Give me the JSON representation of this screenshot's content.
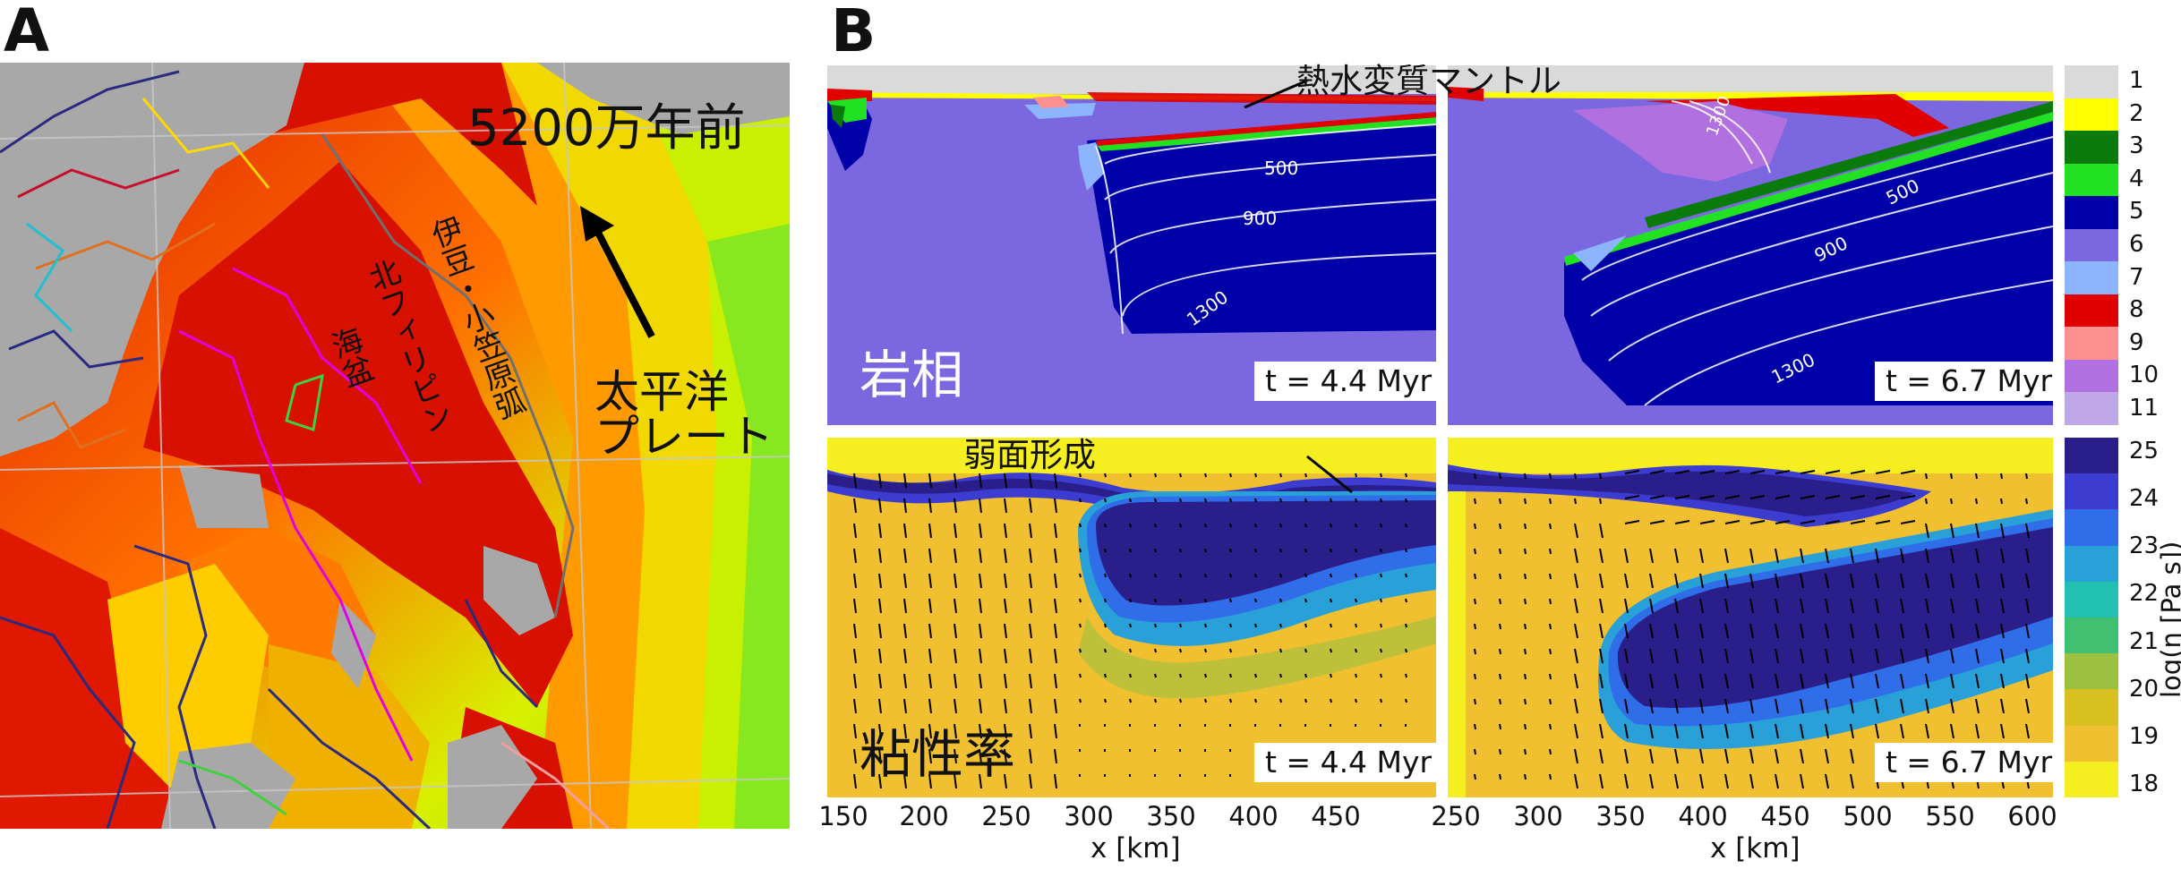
{
  "panel_a": {
    "label": "A",
    "title": "5200万年前",
    "arc_label": "伊豆・小笠原弧",
    "basin_label_1": "北フィリピン",
    "basin_label_2": "海盆",
    "plate_label_1": "太平洋",
    "plate_label_2": "プレート"
  },
  "panel_b": {
    "label": "B",
    "annot_mantle": "熱水変質マントル",
    "annot_weak": "弱面形成",
    "row1_label": "岩相",
    "row2_label": "粘性率",
    "time_left": "t = 4.4 Myr",
    "time_right": "t = 6.7 Myr",
    "contours": [
      "500",
      "900",
      "1300"
    ],
    "xaxis_label": "x [km]",
    "xticks_left": [
      "150",
      "200",
      "250",
      "300",
      "350",
      "400",
      "450"
    ],
    "xticks_right": [
      "250",
      "300",
      "350",
      "400",
      "450",
      "500",
      "550",
      "600"
    ]
  },
  "legend_phase": {
    "labels": [
      "1",
      "2",
      "3",
      "4",
      "5",
      "6",
      "7",
      "8",
      "9",
      "10",
      "11"
    ],
    "colors": [
      "#dadada",
      "#ffff00",
      "#0a7a0a",
      "#22e022",
      "#0000a8",
      "#7b68e0",
      "#8cb4ff",
      "#e00000",
      "#ff9090",
      "#b070e0",
      "#c0a8e8"
    ]
  },
  "legend_visc": {
    "labels": [
      "25",
      "24",
      "23",
      "22",
      "21",
      "20",
      "19",
      "18"
    ],
    "title": "log(η [Pa s])",
    "colors": [
      "#2a1f8a",
      "#3c3cd0",
      "#2f6ee8",
      "#2aa0d8",
      "#22c0b0",
      "#40c070",
      "#9cc040",
      "#d8c020",
      "#f0c030",
      "#f5ee20"
    ]
  },
  "colors": {
    "ocean_red": "#e00000",
    "mantle": "#7b68e0",
    "slab": "#0000a8",
    "visc_bg": "#f0c030",
    "visc_slab": "#2a1f8a"
  }
}
